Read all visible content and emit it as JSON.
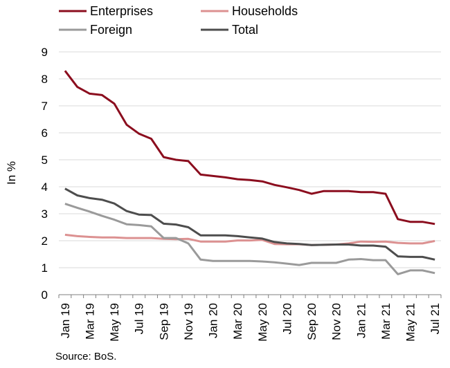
{
  "chart_data": {
    "type": "line",
    "title": "",
    "ylabel": "In %",
    "xlabel": "",
    "ylim": [
      0,
      9
    ],
    "yticks": [
      0,
      1,
      2,
      3,
      4,
      5,
      6,
      7,
      8,
      9
    ],
    "grid": "horizontal",
    "legend_position": "top",
    "x": [
      "Jan 19",
      "Feb 19",
      "Mar 19",
      "Apr 19",
      "May 19",
      "Jun 19",
      "Jul 19",
      "Aug 19",
      "Sep 19",
      "Oct 19",
      "Nov 19",
      "Dec 19",
      "Jan 20",
      "Feb 20",
      "Mar 20",
      "Apr 20",
      "May 20",
      "Jun 20",
      "Jul 20",
      "Aug 20",
      "Sep 20",
      "Oct 20",
      "Nov 20",
      "Dec 20",
      "Jan 21",
      "Feb 21",
      "Mar 21",
      "Apr 21",
      "May 21",
      "Jun 21",
      "Jul 21"
    ],
    "xtick_labels": [
      "Jan 19",
      "Mar 19",
      "May 19",
      "Jul 19",
      "Sep 19",
      "Nov 19",
      "Jan 20",
      "Mar 20",
      "May 20",
      "Jul 20",
      "Sep 20",
      "Nov 20",
      "Jan 21",
      "Mar 21",
      "May 21",
      "Jul 21"
    ],
    "series": [
      {
        "name": "Enterprises",
        "color": "#8b0d1e",
        "values": [
          8.3,
          7.7,
          7.45,
          7.4,
          7.08,
          6.3,
          5.97,
          5.78,
          5.1,
          5.0,
          4.95,
          4.45,
          4.4,
          4.35,
          4.28,
          4.25,
          4.2,
          4.07,
          3.98,
          3.88,
          3.74,
          3.84,
          3.84,
          3.84,
          3.8,
          3.8,
          3.74,
          2.8,
          2.7,
          2.7,
          2.62
        ]
      },
      {
        "name": "Households",
        "color": "#dc9191",
        "values": [
          2.22,
          2.17,
          2.14,
          2.12,
          2.12,
          2.1,
          2.1,
          2.1,
          2.07,
          2.06,
          2.07,
          1.97,
          1.97,
          1.97,
          2.01,
          2.01,
          2.03,
          1.88,
          1.87,
          1.87,
          1.84,
          1.85,
          1.86,
          1.9,
          1.97,
          1.96,
          1.97,
          1.92,
          1.9,
          1.9,
          1.99
        ]
      },
      {
        "name": "Foreign",
        "color": "#9a9a9a",
        "values": [
          3.37,
          3.22,
          3.08,
          2.92,
          2.78,
          2.61,
          2.58,
          2.53,
          2.1,
          2.1,
          1.9,
          1.3,
          1.25,
          1.25,
          1.25,
          1.25,
          1.23,
          1.2,
          1.15,
          1.1,
          1.18,
          1.18,
          1.18,
          1.3,
          1.32,
          1.28,
          1.28,
          0.76,
          0.9,
          0.9,
          0.8
        ]
      },
      {
        "name": "Total",
        "color": "#4d4d4d",
        "values": [
          3.93,
          3.68,
          3.58,
          3.52,
          3.38,
          3.1,
          2.97,
          2.95,
          2.63,
          2.6,
          2.5,
          2.2,
          2.2,
          2.2,
          2.17,
          2.12,
          2.08,
          1.95,
          1.9,
          1.88,
          1.84,
          1.85,
          1.86,
          1.86,
          1.82,
          1.82,
          1.78,
          1.42,
          1.4,
          1.4,
          1.3
        ]
      }
    ]
  },
  "source": "Source: BoS."
}
